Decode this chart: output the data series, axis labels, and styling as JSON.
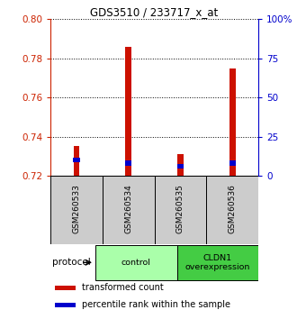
{
  "title": "GDS3510 / 233717_x_at",
  "samples": [
    "GSM260533",
    "GSM260534",
    "GSM260535",
    "GSM260536"
  ],
  "transformed_counts": [
    0.735,
    0.786,
    0.731,
    0.775
  ],
  "percentile_values": [
    10,
    8,
    6,
    8
  ],
  "ylim_left": [
    0.72,
    0.8
  ],
  "ylim_right": [
    0,
    100
  ],
  "yticks_left": [
    0.72,
    0.74,
    0.76,
    0.78,
    0.8
  ],
  "yticks_right": [
    0,
    25,
    50,
    75,
    100
  ],
  "ytick_labels_right": [
    "0",
    "25",
    "50",
    "75",
    "100%"
  ],
  "groups": [
    {
      "label": "control",
      "samples": [
        0,
        1
      ],
      "color": "#aaffaa"
    },
    {
      "label": "CLDN1\noverexpression",
      "samples": [
        2,
        3
      ],
      "color": "#44cc44"
    }
  ],
  "bar_width": 0.12,
  "red_color": "#cc1100",
  "blue_color": "#0000cc",
  "bar_bottom": 0.72,
  "axis_left_color": "#cc2200",
  "axis_right_color": "#0000cc",
  "bg_color_plot": "#ffffff",
  "bg_color_sample": "#cccccc",
  "legend_red_label": "transformed count",
  "legend_blue_label": "percentile rank within the sample",
  "protocol_label": "protocol"
}
